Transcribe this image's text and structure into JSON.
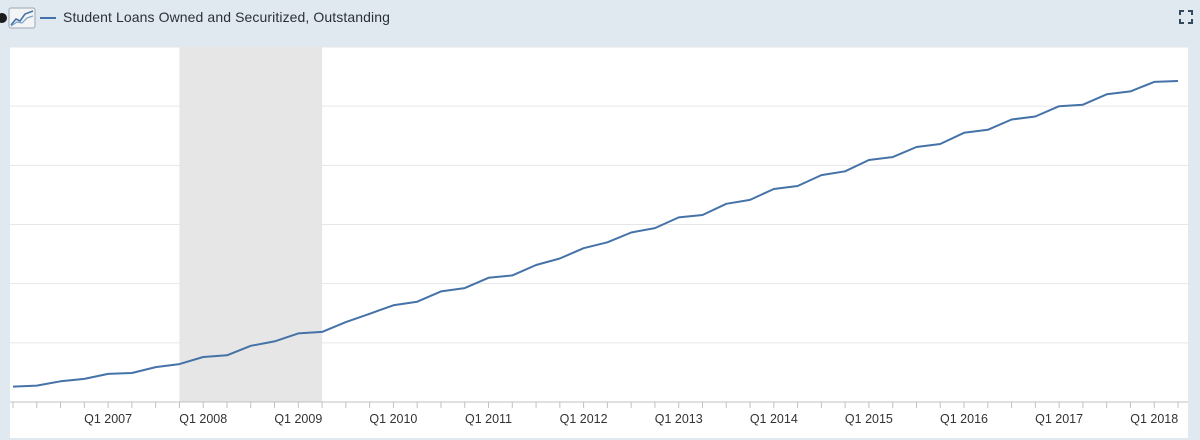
{
  "header": {
    "logo_icon": "chart-logo-icon",
    "legend_label": "Student Loans Owned and Securitized, Outstanding",
    "fullscreen_icon": "fullscreen-icon"
  },
  "colors": {
    "series": "#4572a7",
    "recession": "#e6e6e6",
    "grid": "#e6e6e6",
    "background": "#e1e9f0"
  },
  "chart_data": {
    "type": "line",
    "series": [
      {
        "name": "Student Loans Owned and Securitized, Outstanding",
        "x": [
          "Q1 2006",
          "Q2 2006",
          "Q3 2006",
          "Q4 2006",
          "Q1 2007",
          "Q2 2007",
          "Q3 2007",
          "Q4 2007",
          "Q1 2008",
          "Q2 2008",
          "Q3 2008",
          "Q4 2008",
          "Q1 2009",
          "Q2 2009",
          "Q3 2009",
          "Q4 2009",
          "Q1 2010",
          "Q2 2010",
          "Q3 2010",
          "Q4 2010",
          "Q1 2011",
          "Q2 2011",
          "Q3 2011",
          "Q4 2011",
          "Q1 2012",
          "Q2 2012",
          "Q3 2012",
          "Q4 2012",
          "Q1 2013",
          "Q2 2013",
          "Q3 2013",
          "Q4 2013",
          "Q1 2014",
          "Q2 2014",
          "Q3 2014",
          "Q4 2014",
          "Q1 2015",
          "Q2 2015",
          "Q3 2015",
          "Q4 2015",
          "Q1 2016",
          "Q2 2016",
          "Q3 2016",
          "Q4 2016",
          "Q1 2017",
          "Q2 2017",
          "Q3 2017",
          "Q4 2017",
          "Q1 2018",
          "Q2 2018"
        ],
        "values": [
          0.52,
          0.555,
          0.7,
          0.78,
          0.95,
          0.98,
          1.18,
          1.28,
          1.52,
          1.58,
          1.9,
          2.05,
          2.32,
          2.37,
          2.7,
          2.98,
          3.27,
          3.39,
          3.74,
          3.85,
          4.2,
          4.28,
          4.63,
          4.85,
          5.2,
          5.4,
          5.73,
          5.88,
          6.24,
          6.32,
          6.7,
          6.83,
          7.2,
          7.3,
          7.67,
          7.8,
          8.18,
          8.28,
          8.62,
          8.72,
          9.1,
          9.2,
          9.55,
          9.65,
          10.0,
          10.05,
          10.4,
          10.5,
          10.82,
          10.85
        ]
      }
    ],
    "x_ticks": [
      "Q1 2007",
      "Q1 2008",
      "Q1 2009",
      "Q1 2010",
      "Q1 2011",
      "Q1 2012",
      "Q1 2013",
      "Q1 2014",
      "Q1 2015",
      "Q1 2016",
      "Q1 2017",
      "Q1 2018"
    ],
    "recession": {
      "start": "Q4 2007",
      "end": "Q2 2009"
    },
    "ylim": [
      0,
      12
    ],
    "grid": true,
    "legend": "top-left",
    "title": "",
    "xlabel": "",
    "ylabel": ""
  }
}
